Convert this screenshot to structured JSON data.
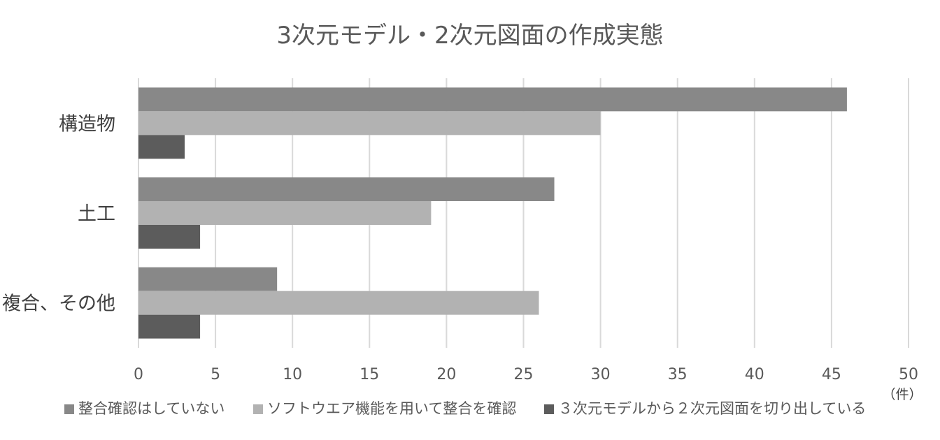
{
  "chart_data": {
    "type": "bar",
    "orientation": "horizontal",
    "title": "3次元モデル・2次元図面の作成実態",
    "categories": [
      "構造物",
      "土工",
      "複合、その他"
    ],
    "series": [
      {
        "name": "整合確認はしていない",
        "color": "#888888",
        "values": [
          46,
          27,
          9
        ]
      },
      {
        "name": "ソフトウエア機能を用いて整合を確認",
        "color": "#b2b2b2",
        "values": [
          30,
          19,
          26
        ]
      },
      {
        "name": "３次元モデルから２次元図面を切り出している",
        "color": "#5c5c5c",
        "values": [
          3,
          4,
          4
        ]
      }
    ],
    "xlim": [
      0,
      50
    ],
    "x_ticks": [
      "0",
      "5",
      "10",
      "15",
      "20",
      "25",
      "30",
      "35",
      "40",
      "45",
      "50"
    ],
    "x_unit": "（件）",
    "grid": true,
    "legend": "bottom"
  }
}
